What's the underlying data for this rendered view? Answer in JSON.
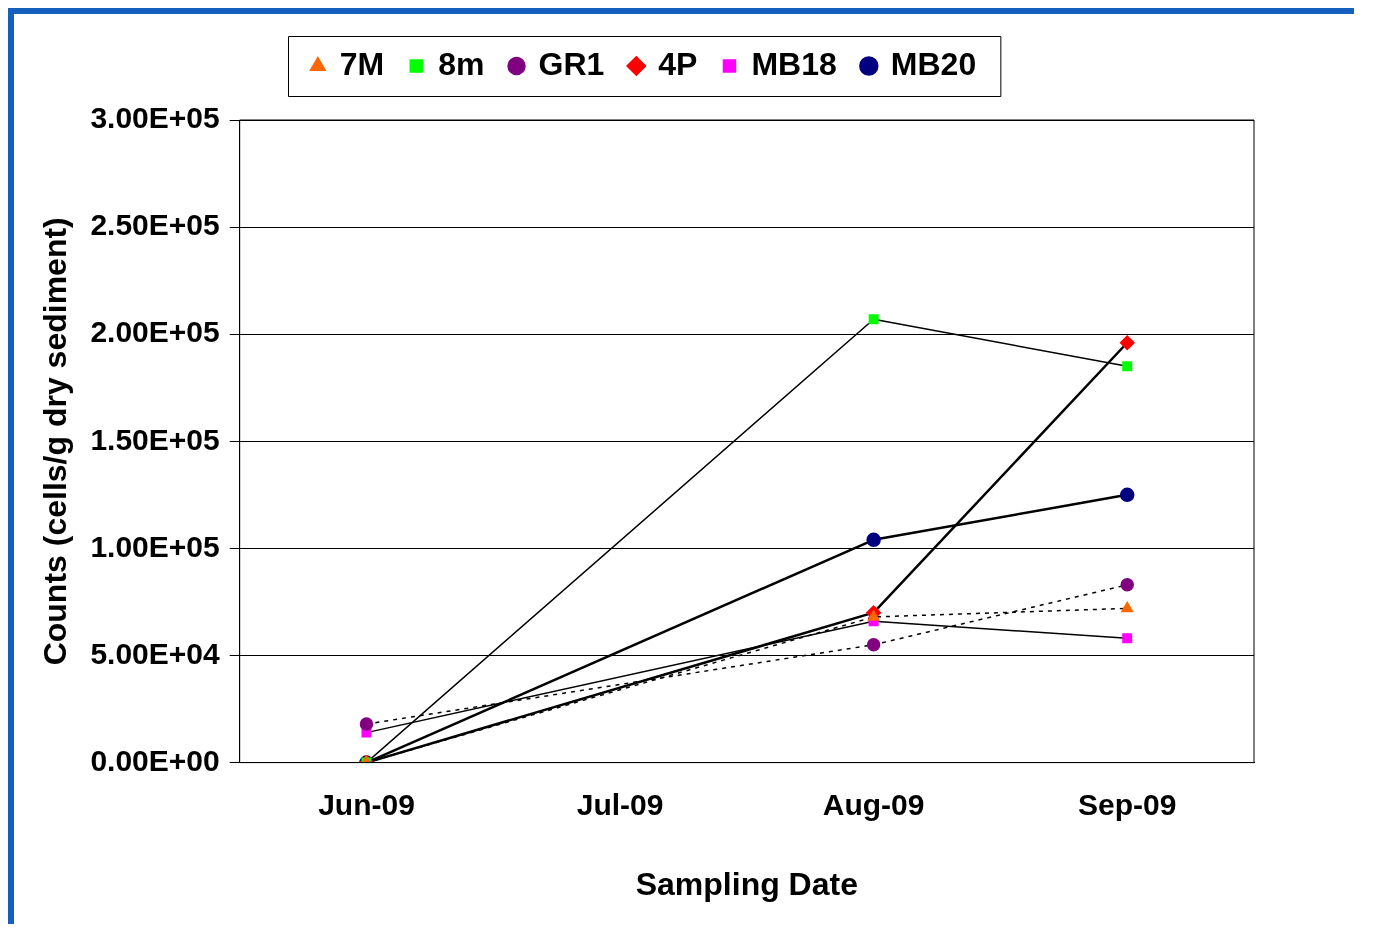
{
  "chart_data": {
    "type": "line",
    "xlabel": "Sampling Date",
    "ylabel": "Counts (cells/g dry sediment)",
    "categories": [
      "Jun-09",
      "Jul-09",
      "Aug-09",
      "Sep-09"
    ],
    "ylim": [
      0,
      300000
    ],
    "yticks": [
      {
        "value": 0,
        "label": "0.00E+00"
      },
      {
        "value": 50000,
        "label": "5.00E+04"
      },
      {
        "value": 100000,
        "label": "1.00E+05"
      },
      {
        "value": 150000,
        "label": "1.50E+05"
      },
      {
        "value": 200000,
        "label": "2.00E+05"
      },
      {
        "value": 250000,
        "label": "2.50E+05"
      },
      {
        "value": 300000,
        "label": "3.00E+05"
      }
    ],
    "grid": "y",
    "legend": "top",
    "series": [
      {
        "name": "7M",
        "color": "#ff6600",
        "marker": "triangle",
        "line_style": "dotted",
        "values": [
          0,
          null,
          68000,
          72000
        ]
      },
      {
        "name": "8m",
        "color": "#00ff00",
        "marker": "square",
        "line_style": "solid",
        "values": [
          0,
          null,
          207000,
          185000
        ]
      },
      {
        "name": "GR1",
        "color": "#800080",
        "marker": "circle",
        "line_style": "dotted",
        "values": [
          18000,
          null,
          55000,
          83000
        ]
      },
      {
        "name": "4P",
        "color": "#ff0000",
        "marker": "diamond",
        "line_style": "solid",
        "values": [
          0,
          null,
          70000,
          196000
        ]
      },
      {
        "name": "MB18",
        "color": "#ff00ff",
        "marker": "square",
        "line_style": "solid",
        "values": [
          14000,
          null,
          66000,
          58000
        ]
      },
      {
        "name": "MB20",
        "color": "#000080",
        "marker": "circle",
        "line_style": "solid",
        "values": [
          0,
          null,
          104000,
          125000
        ]
      }
    ]
  }
}
